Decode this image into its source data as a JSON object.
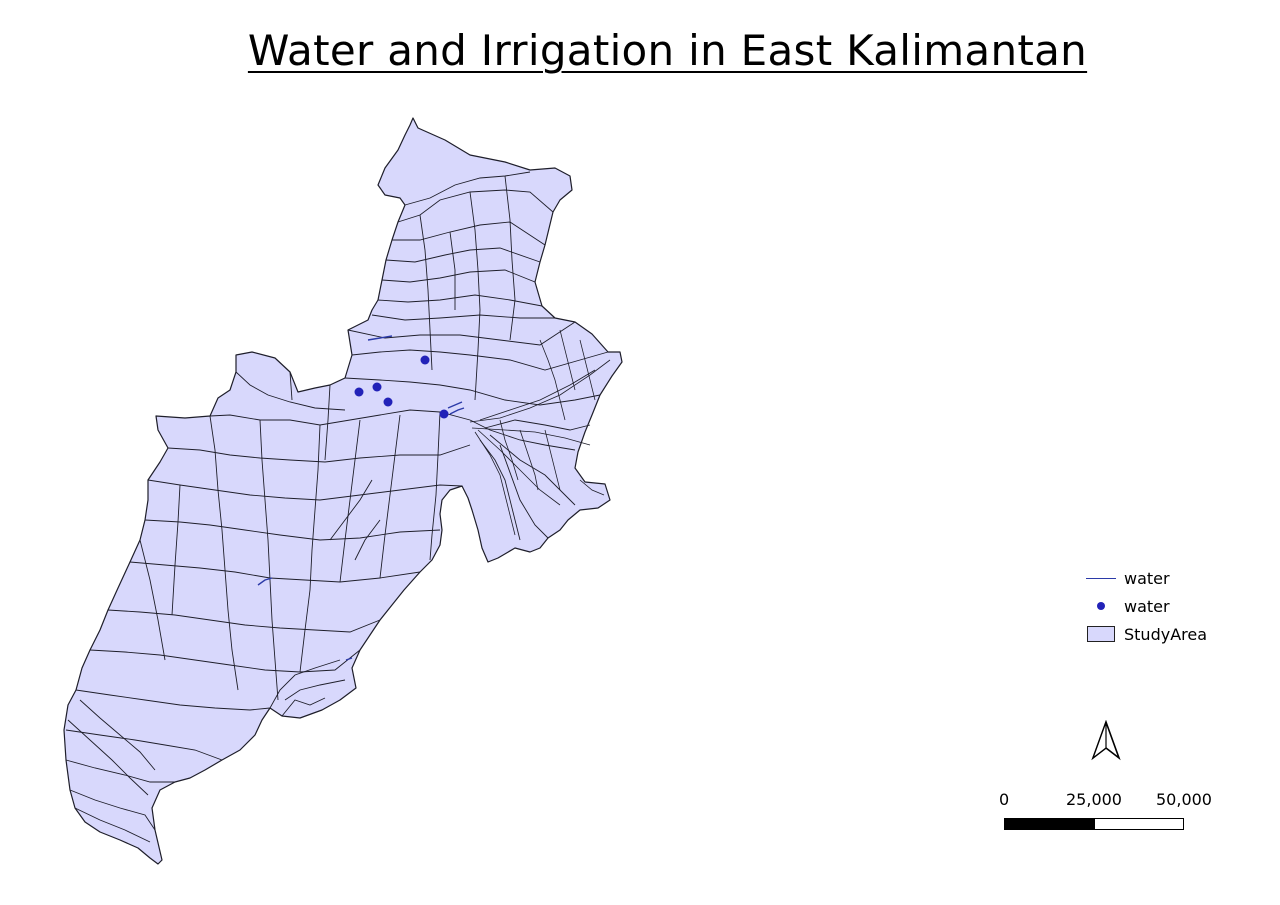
{
  "map": {
    "title": "Water and Irrigation in East Kalimantan",
    "colors": {
      "study_area_fill": "#d8d8fc",
      "boundary_stroke": "#1e1e2a",
      "water_line": "#2b3aa8",
      "water_point": "#2222b8"
    }
  },
  "legend": {
    "items": [
      {
        "label": "water",
        "symbol": "line"
      },
      {
        "label": "water",
        "symbol": "point"
      },
      {
        "label": "StudyArea",
        "symbol": "polygon"
      }
    ]
  },
  "north_arrow": {
    "icon": "north-arrow-icon"
  },
  "scale_bar": {
    "labels": [
      "0",
      "25,000",
      "50,000"
    ]
  }
}
